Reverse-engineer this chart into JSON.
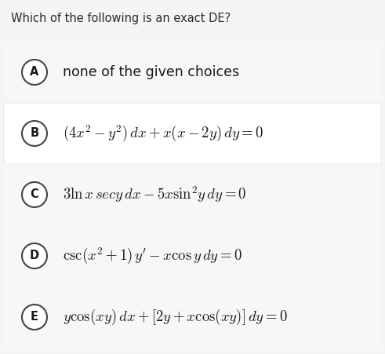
{
  "title": "Which of the following is an exact DE?",
  "page_bg": "#f5f5f5",
  "band_bg_light": "#f7f7f7",
  "band_bg_white": "#ffffff",
  "band_border": "#dddddd",
  "options": [
    {
      "letter": "A",
      "text": "none of the given choices",
      "math": false,
      "white_band": false
    },
    {
      "letter": "B",
      "text": "$(4x^2-y^2)\\,dx+x(x-2y)\\,dy=0$",
      "math": true,
      "white_band": true
    },
    {
      "letter": "C",
      "text": "$3\\ln x\\,secy\\,dx - 5x\\sin^2\\!y\\,dy=0$",
      "math": true,
      "white_band": false
    },
    {
      "letter": "D",
      "text": "$\\csc(x^2+1)\\,y^{\\prime} - x\\cos y\\,dy=0$",
      "math": true,
      "white_band": false
    },
    {
      "letter": "E",
      "text": "$y\\cos(xy)\\,dx+[2y+x\\cos(xy)]\\,dy=0$",
      "math": true,
      "white_band": false
    }
  ],
  "title_fontsize": 10.5,
  "plain_fontsize": 12.5,
  "math_fontsize": 13.5,
  "letter_fontsize": 10.5,
  "fig_width": 4.91,
  "fig_height": 4.51,
  "dpi": 100
}
